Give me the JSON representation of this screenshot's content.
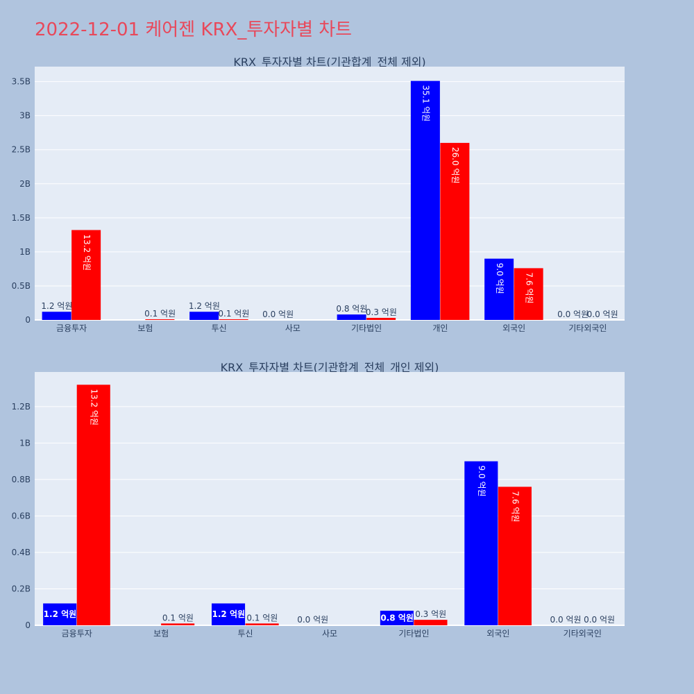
{
  "page_title": "2022-12-01 케어젠 KRX_투자자별 차트",
  "colors": {
    "background": "#b0c4de",
    "plot_background": "#e5ecf6",
    "title": "#e8485a",
    "text": "#2a3f5f",
    "grid": "#ffffff",
    "series_1": "#0000ff",
    "series_2": "#ff0000"
  },
  "chart_data": [
    {
      "type": "bar",
      "title": "KRX_투자자별 차트(기관합계_전체 제외)",
      "categories": [
        "금융투자",
        "보험",
        "투신",
        "사모",
        "기타법인",
        "개인",
        "외국인",
        "기타외국인"
      ],
      "series": [
        {
          "color": "#0000ff",
          "values": [
            120000000,
            0,
            120000000,
            0,
            80000000,
            3510000000,
            900000000,
            0
          ],
          "labels": [
            "1.2 억원",
            "",
            "1.2 억원",
            "0.0 억원",
            "0.8 억원",
            "35.1 억원",
            "9.0 억원",
            "0.0 억원"
          ]
        },
        {
          "color": "#ff0000",
          "values": [
            1320000000,
            10000000,
            10000000,
            0,
            30000000,
            2600000000,
            760000000,
            0
          ],
          "labels": [
            "13.2 억원",
            "0.1 억원",
            "0.1 억원",
            "",
            "0.3 억원",
            "26.0 억원",
            "7.6 억원",
            "0.0 억원"
          ]
        }
      ],
      "yticks": [
        0,
        500000000,
        1000000000,
        1500000000,
        2000000000,
        2500000000,
        3000000000,
        3500000000
      ],
      "ytick_labels": [
        "0",
        "0.5B",
        "1B",
        "1.5B",
        "2B",
        "2.5B",
        "3B",
        "3.5B"
      ],
      "ylim": [
        0,
        3720000000
      ],
      "grid": true,
      "legend": "none"
    },
    {
      "type": "bar",
      "title": "KRX_투자자별 차트(기관합계_전체_개인 제외)",
      "categories": [
        "금융투자",
        "보험",
        "투신",
        "사모",
        "기타법인",
        "외국인",
        "기타외국인"
      ],
      "series": [
        {
          "color": "#0000ff",
          "values": [
            120000000,
            0,
            120000000,
            0,
            80000000,
            900000000,
            0
          ],
          "labels": [
            "1.2 억원",
            "",
            "1.2 억원",
            "0.0 억원",
            "0.8 억원",
            "9.0 억원",
            "0.0 억원"
          ]
        },
        {
          "color": "#ff0000",
          "values": [
            1320000000,
            10000000,
            10000000,
            0,
            30000000,
            760000000,
            0
          ],
          "labels": [
            "13.2 억원",
            "0.1 억원",
            "0.1 억원",
            "",
            "0.3 억원",
            "7.6 억원",
            "0.0 억원"
          ]
        }
      ],
      "yticks": [
        0,
        200000000,
        400000000,
        600000000,
        800000000,
        1000000000,
        1200000000
      ],
      "ytick_labels": [
        "0",
        "0.2B",
        "0.4B",
        "0.6B",
        "0.8B",
        "1B",
        "1.2B"
      ],
      "ylim": [
        0,
        1390000000
      ],
      "grid": true,
      "legend": "none"
    }
  ]
}
